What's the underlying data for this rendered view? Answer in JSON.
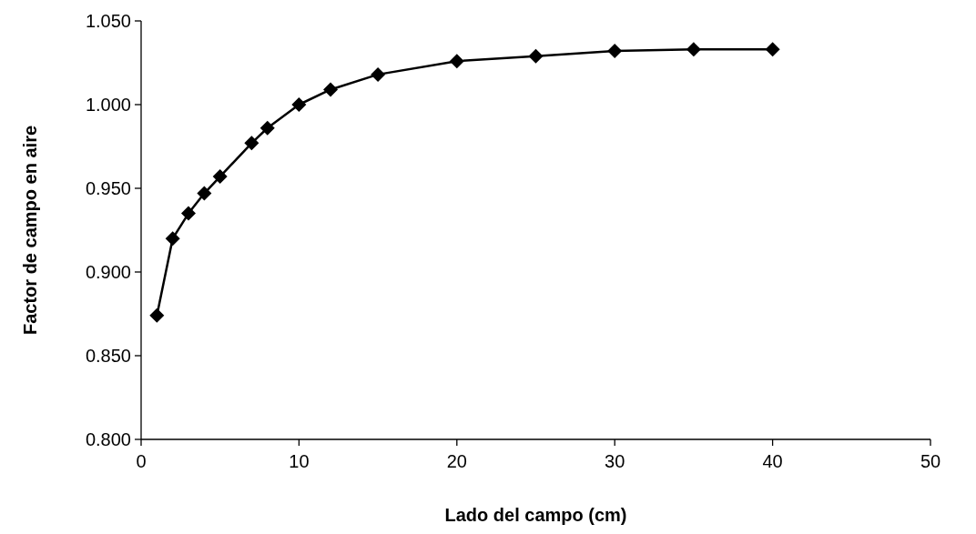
{
  "chart_data": {
    "type": "line",
    "xlabel": "Lado del campo (cm)",
    "ylabel": "Factor de campo en aire",
    "x": [
      1,
      2,
      3,
      4,
      5,
      7,
      8,
      10,
      12,
      15,
      20,
      25,
      30,
      35,
      40
    ],
    "series": [
      {
        "color": "#000000",
        "values": [
          0.874,
          0.92,
          0.935,
          0.947,
          0.957,
          0.977,
          0.986,
          1.0,
          1.009,
          1.018,
          1.026,
          1.029,
          1.032,
          1.033,
          1.033
        ]
      }
    ],
    "xlim": [
      0,
      50
    ],
    "xticks": [
      0,
      10,
      20,
      30,
      40,
      50
    ],
    "ylim": [
      0.8,
      1.05
    ],
    "yticks": [
      {
        "value": 0.8,
        "label": "0.800"
      },
      {
        "value": 0.85,
        "label": "0.850"
      },
      {
        "value": 0.9,
        "label": "0.900"
      },
      {
        "value": 0.95,
        "label": "0.950"
      },
      {
        "value": 1.0,
        "label": "1.000"
      },
      {
        "value": 1.05,
        "label": "1.050"
      }
    ],
    "marker": "diamond",
    "line_style": "solid",
    "grid": false
  }
}
